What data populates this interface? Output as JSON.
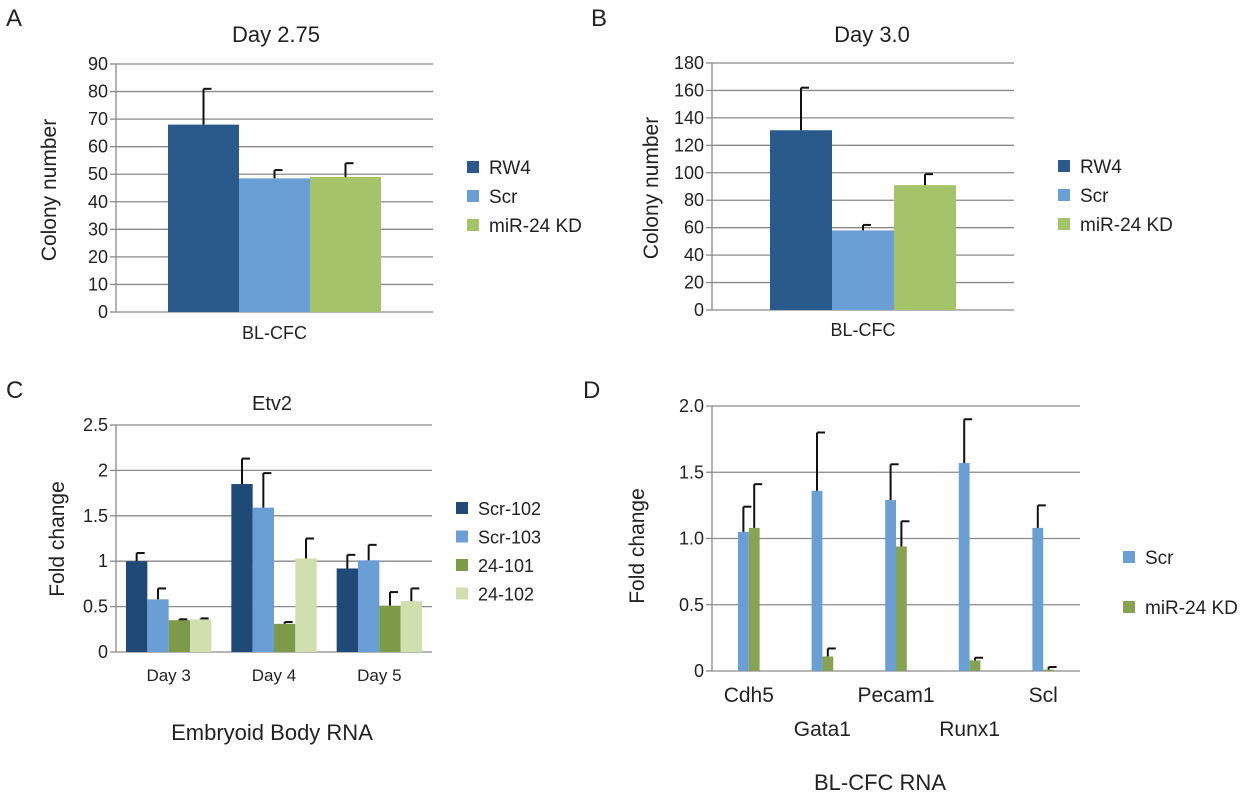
{
  "panels": {
    "A": {
      "letter": "A"
    },
    "B": {
      "letter": "B"
    },
    "C": {
      "letter": "C"
    },
    "D": {
      "letter": "D"
    }
  },
  "chart_data": [
    {
      "id": "A",
      "type": "bar",
      "title": "Day 2.75",
      "ylabel": "Colony number",
      "xlabel": "",
      "ylim": [
        0,
        90
      ],
      "yticks": [
        "0",
        "10",
        "20",
        "30",
        "40",
        "50",
        "60",
        "70",
        "80",
        "90"
      ],
      "categories": [
        "BL-CFC"
      ],
      "grid": true,
      "legend_position": "right",
      "series": [
        {
          "name": "RW4",
          "color": "#2a5a8c",
          "values": [
            68
          ],
          "errors": [
            13
          ]
        },
        {
          "name": "Scr",
          "color": "#6a9fd6",
          "values": [
            48.5
          ],
          "errors": [
            3
          ]
        },
        {
          "name": "miR-24 KD",
          "color": "#a5c46a",
          "values": [
            49
          ],
          "errors": [
            5
          ]
        }
      ]
    },
    {
      "id": "B",
      "type": "bar",
      "title": "Day 3.0",
      "ylabel": "Colony number",
      "xlabel": "",
      "ylim": [
        0,
        180
      ],
      "yticks": [
        "0",
        "20",
        "40",
        "60",
        "80",
        "100",
        "120",
        "140",
        "160",
        "180"
      ],
      "categories": [
        "BL-CFC"
      ],
      "grid": true,
      "legend_position": "right",
      "series": [
        {
          "name": "RW4",
          "color": "#2a5a8c",
          "values": [
            131
          ],
          "errors": [
            31
          ]
        },
        {
          "name": "Scr",
          "color": "#6a9fd6",
          "values": [
            58
          ],
          "errors": [
            4
          ]
        },
        {
          "name": "miR-24 KD",
          "color": "#a5c46a",
          "values": [
            91
          ],
          "errors": [
            8
          ]
        }
      ]
    },
    {
      "id": "C",
      "type": "bar",
      "title": "Etv2",
      "ylabel": "Fold change",
      "xlabel": "Embryoid Body RNA",
      "ylim": [
        0,
        2.5
      ],
      "yticks": [
        "0",
        "0.5",
        "1",
        "1.5",
        "2",
        "2.5"
      ],
      "categories": [
        "Day 3",
        "Day 4",
        "Day 5"
      ],
      "grid": true,
      "legend_position": "right",
      "series": [
        {
          "name": "Scr-102",
          "color": "#1f4a78",
          "values": [
            1.0,
            1.85,
            0.92
          ],
          "errors": [
            0.09,
            0.28,
            0.15
          ]
        },
        {
          "name": "Scr-103",
          "color": "#6a9fd6",
          "values": [
            0.58,
            1.59,
            1.01
          ],
          "errors": [
            0.12,
            0.38,
            0.17
          ]
        },
        {
          "name": "24-101",
          "color": "#7c9a48",
          "values": [
            0.35,
            0.31,
            0.51
          ],
          "errors": [
            0.01,
            0.02,
            0.15
          ]
        },
        {
          "name": "24-102",
          "color": "#cfdfae",
          "values": [
            0.36,
            1.03,
            0.56
          ],
          "errors": [
            0.01,
            0.22,
            0.14
          ]
        }
      ]
    },
    {
      "id": "D",
      "type": "bar",
      "title": "",
      "ylabel": "Fold change",
      "xlabel": "BL-CFC RNA",
      "ylim": [
        0,
        2.0
      ],
      "yticks": [
        "0",
        "0.5",
        "1.0",
        "1.5",
        "2.0"
      ],
      "categories": [
        "Cdh5",
        "Gata1",
        "Pecam1",
        "Runx1",
        "Scl"
      ],
      "grid": true,
      "legend_position": "right",
      "series": [
        {
          "name": "Scr",
          "color": "#6a9fd6",
          "values": [
            1.05,
            1.36,
            1.29,
            1.57,
            1.08
          ],
          "errors": [
            0.19,
            0.44,
            0.27,
            0.33,
            0.17
          ]
        },
        {
          "name": "miR-24 KD",
          "color": "#86a352",
          "values": [
            1.08,
            0.11,
            0.94,
            0.08,
            0.01
          ],
          "errors": [
            0.33,
            0.06,
            0.19,
            0.02,
            0.02
          ]
        }
      ]
    }
  ]
}
